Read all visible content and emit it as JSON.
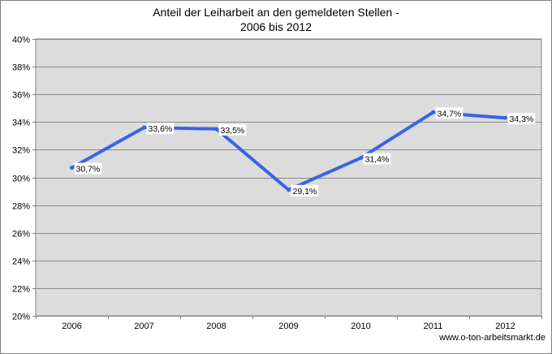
{
  "chart_data": {
    "type": "line",
    "title_line1": "Anteil der Leiharbeit an den gemeldeten Stellen -",
    "title_line2": "2006 bis 2012",
    "xlabel": "",
    "ylabel": "",
    "categories": [
      "2006",
      "2007",
      "2008",
      "2009",
      "2010",
      "2011",
      "2012"
    ],
    "series": [
      {
        "values": [
          30.7,
          33.6,
          33.5,
          29.1,
          31.4,
          34.7,
          34.3
        ],
        "labels": [
          "30,7%",
          "33,6%",
          "33,5%",
          "29,1%",
          "31,4%",
          "34,7%",
          "34,3%"
        ],
        "color": "#3a64e6"
      }
    ],
    "ylim": [
      20,
      40
    ],
    "yticks": [
      20,
      22,
      24,
      26,
      28,
      30,
      32,
      34,
      36,
      38,
      40
    ],
    "ytick_labels": [
      "20%",
      "22%",
      "24%",
      "26%",
      "28%",
      "30%",
      "32%",
      "34%",
      "36%",
      "38%",
      "40%"
    ],
    "grid": true,
    "plot_background": "#dcdcdc",
    "legend": "none"
  },
  "source": "www.o-ton-arbeitsmarkt.de"
}
